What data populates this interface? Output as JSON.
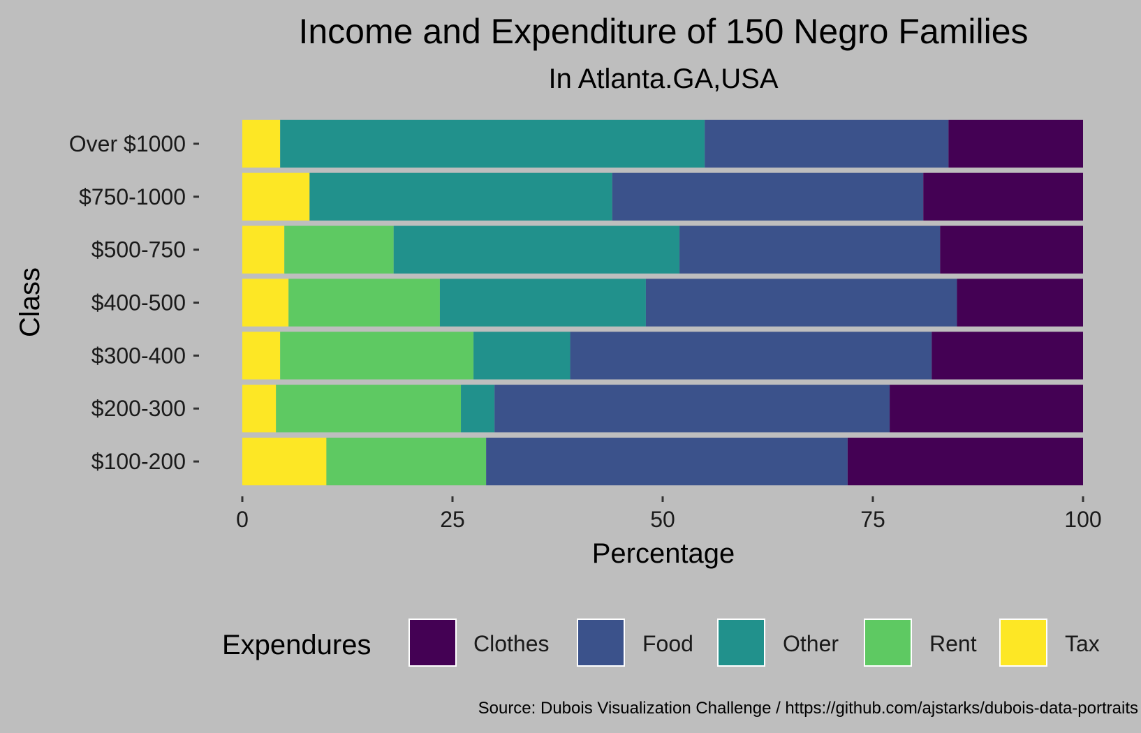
{
  "chart_data": {
    "type": "bar",
    "orientation": "horizontal",
    "stacked": true,
    "title": "Income and Expenditure of 150 Negro Families",
    "subtitle": "In Atlanta.GA,USA",
    "xlabel": "Percentage",
    "ylabel": "Class",
    "xlim": [
      0,
      100
    ],
    "x_ticks": [
      "0",
      "25",
      "50",
      "75",
      "100"
    ],
    "categories": [
      "Over $1000",
      "$750-1000",
      "$500-750",
      "$400-500",
      "$300-400",
      "$200-300",
      "$100-200"
    ],
    "series": [
      {
        "name": "Tax",
        "color": "#fde725",
        "values": [
          4.5,
          8,
          5,
          5.5,
          4.5,
          4,
          10
        ]
      },
      {
        "name": "Rent",
        "color": "#5ec962",
        "values": [
          0,
          0,
          13,
          18,
          23,
          22,
          19
        ]
      },
      {
        "name": "Other",
        "color": "#21918c",
        "values": [
          50.5,
          36,
          34,
          24.5,
          11.5,
          4,
          0
        ]
      },
      {
        "name": "Food",
        "color": "#3b528b",
        "values": [
          29,
          37,
          31,
          37,
          43,
          47,
          43
        ]
      },
      {
        "name": "Clothes",
        "color": "#440154",
        "values": [
          16,
          19,
          17,
          15,
          18,
          23,
          28
        ]
      }
    ],
    "legend": {
      "title": "Expendures",
      "position": "bottom",
      "order": [
        "Clothes",
        "Food",
        "Other",
        "Rent",
        "Tax"
      ]
    },
    "caption": "Source: Dubois Visualization Challenge / https://github.com/ajstarks/dubois-data-portraits",
    "grid": false,
    "background": "#bebebe"
  }
}
